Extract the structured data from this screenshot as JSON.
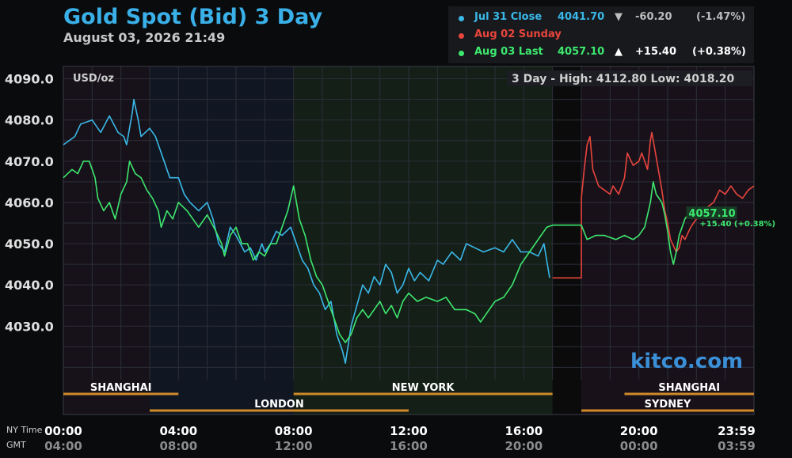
{
  "header": {
    "title": "Gold Spot (Bid) 3 Day",
    "timestamp": "August 03, 2026 21:49"
  },
  "legend": [
    {
      "label": "Jul 31 Close",
      "value": "4041.70",
      "arrow": "▼",
      "change": "-60.20",
      "pct": "(-1.47%)",
      "color": "#3ab8e8",
      "value_color": "#3ab8e8",
      "change_color": "#bdbdbd"
    },
    {
      "label": "Aug 02 Sunday",
      "value": "",
      "arrow": "",
      "change": "",
      "pct": "",
      "color": "#e8453c",
      "value_color": "#e8453c",
      "change_color": "#ffffff"
    },
    {
      "label": "Aug 03 Last",
      "value": "4057.10",
      "arrow": "▲",
      "change": "+15.40",
      "pct": "(+0.38%)",
      "color": "#3ee86f",
      "value_color": "#3ee86f",
      "change_color": "#ffffff"
    }
  ],
  "unit_label": "USD/oz",
  "range_info": "3 Day - High: 4112.80  Low: 4018.20",
  "last_label": {
    "price": "4057.10",
    "change": "+15.40 (+0.38%)"
  },
  "watermark": "kitco.com",
  "tz_labels": {
    "ny": "NY Time",
    "gmt": "GMT"
  },
  "chart_data": {
    "type": "line",
    "title": "Gold Spot (Bid) 3 Day",
    "ylabel": "USD/oz",
    "ylim": [
      4017,
      4093
    ],
    "y_ticks": [
      4090.0,
      4080.0,
      4070.0,
      4060.0,
      4050.0,
      4040.0,
      4030.0
    ],
    "y_tick_labels": [
      "4090.0",
      "4080.0",
      "4070.0",
      "4060.0",
      "4050.0",
      "4040.0",
      "4030.0"
    ],
    "xlim": [
      0,
      24
    ],
    "x_ticks": [
      0,
      4,
      8,
      12,
      16,
      20,
      24
    ],
    "x_tick_labels_ny": [
      "00:00",
      "04:00",
      "08:00",
      "12:00",
      "16:00",
      "20:00",
      "23:59"
    ],
    "x_tick_labels_gmt": [
      "04:00",
      "08:00",
      "12:00",
      "16:00",
      "20:00",
      "00:00",
      "03:59"
    ],
    "grid": true,
    "sessions": [
      {
        "name": "SHANGHAI",
        "start": 0,
        "end": 4,
        "row": 1,
        "color": "#d08a2a"
      },
      {
        "name": "NEW YORK",
        "start": 8,
        "end": 17,
        "row": 1,
        "color": "#d08a2a"
      },
      {
        "name": "SHANGHAI",
        "start": 19.5,
        "end": 24,
        "row": 1,
        "color": "#d08a2a"
      },
      {
        "name": "LONDON",
        "start": 3,
        "end": 12,
        "row": 2,
        "color": "#d08a2a"
      },
      {
        "name": "SYDNEY",
        "start": 18,
        "end": 24,
        "row": 2,
        "color": "#d08a2a"
      }
    ],
    "background_bands": [
      {
        "start": 0,
        "end": 3,
        "color": "#171119"
      },
      {
        "start": 3,
        "end": 8,
        "color": "#111722"
      },
      {
        "start": 8,
        "end": 17,
        "color": "#141f17"
      },
      {
        "start": 17,
        "end": 18,
        "color": "#0b0b0b"
      },
      {
        "start": 18,
        "end": 24,
        "color": "#18111a"
      }
    ],
    "series": [
      {
        "name": "Jul 31 Close",
        "color": "#3ab8e8",
        "points": [
          [
            0,
            4074
          ],
          [
            0.4,
            4076
          ],
          [
            0.6,
            4079
          ],
          [
            1,
            4080
          ],
          [
            1.3,
            4077
          ],
          [
            1.6,
            4081
          ],
          [
            1.9,
            4077
          ],
          [
            2.1,
            4076
          ],
          [
            2.2,
            4074
          ],
          [
            2.4,
            4082
          ],
          [
            2.45,
            4085
          ],
          [
            2.6,
            4080
          ],
          [
            2.7,
            4076
          ],
          [
            3,
            4078
          ],
          [
            3.2,
            4076
          ],
          [
            3.5,
            4070
          ],
          [
            3.7,
            4066
          ],
          [
            4,
            4066
          ],
          [
            4.2,
            4062
          ],
          [
            4.4,
            4060
          ],
          [
            4.7,
            4058
          ],
          [
            5,
            4060
          ],
          [
            5.2,
            4056
          ],
          [
            5.4,
            4050
          ],
          [
            5.6,
            4048
          ],
          [
            5.8,
            4054
          ],
          [
            6,
            4052
          ],
          [
            6.3,
            4048
          ],
          [
            6.5,
            4049
          ],
          [
            6.7,
            4046
          ],
          [
            6.9,
            4050
          ],
          [
            7,
            4048
          ],
          [
            7.2,
            4050
          ],
          [
            7.4,
            4053
          ],
          [
            7.6,
            4052
          ],
          [
            7.9,
            4054
          ],
          [
            8.1,
            4050
          ],
          [
            8.3,
            4046
          ],
          [
            8.5,
            4044
          ],
          [
            8.7,
            4040
          ],
          [
            8.9,
            4038
          ],
          [
            9.1,
            4034
          ],
          [
            9.3,
            4036
          ],
          [
            9.5,
            4028
          ],
          [
            9.7,
            4024
          ],
          [
            9.8,
            4021
          ],
          [
            10,
            4030
          ],
          [
            10.2,
            4035
          ],
          [
            10.4,
            4040
          ],
          [
            10.6,
            4038
          ],
          [
            10.8,
            4042
          ],
          [
            11,
            4040
          ],
          [
            11.2,
            4045
          ],
          [
            11.4,
            4043
          ],
          [
            11.6,
            4038
          ],
          [
            11.8,
            4040
          ],
          [
            12,
            4044
          ],
          [
            12.2,
            4041
          ],
          [
            12.4,
            4043
          ],
          [
            12.7,
            4041
          ],
          [
            13,
            4046
          ],
          [
            13.2,
            4045
          ],
          [
            13.5,
            4048
          ],
          [
            13.8,
            4046
          ],
          [
            14,
            4050
          ],
          [
            14.3,
            4049
          ],
          [
            14.6,
            4048
          ],
          [
            15,
            4049
          ],
          [
            15.3,
            4048
          ],
          [
            15.6,
            4051
          ],
          [
            15.9,
            4048
          ],
          [
            16.2,
            4048
          ],
          [
            16.5,
            4047
          ],
          [
            16.7,
            4050
          ],
          [
            16.9,
            4041.7
          ]
        ]
      },
      {
        "name": "Aug 02 Sunday",
        "color": "#e8453c",
        "points": [
          [
            17,
            4041.7
          ],
          [
            18,
            4041.7
          ],
          [
            18,
            4061
          ],
          [
            18.1,
            4068
          ],
          [
            18.2,
            4074
          ],
          [
            18.3,
            4076
          ],
          [
            18.4,
            4068
          ],
          [
            18.5,
            4066
          ],
          [
            18.6,
            4064
          ],
          [
            18.8,
            4063
          ],
          [
            19,
            4062
          ],
          [
            19.1,
            4064
          ],
          [
            19.3,
            4062
          ],
          [
            19.5,
            4066
          ],
          [
            19.6,
            4072
          ],
          [
            19.8,
            4069
          ],
          [
            20,
            4070
          ],
          [
            20.1,
            4072
          ],
          [
            20.3,
            4068
          ],
          [
            20.4,
            4075
          ],
          [
            20.45,
            4077
          ],
          [
            20.6,
            4071
          ],
          [
            20.7,
            4067
          ],
          [
            20.8,
            4063
          ],
          [
            20.9,
            4058
          ],
          [
            21,
            4055
          ],
          [
            21.1,
            4051
          ],
          [
            21.3,
            4048
          ],
          [
            21.4,
            4049
          ],
          [
            21.5,
            4052
          ],
          [
            21.6,
            4051
          ],
          [
            21.8,
            4054
          ],
          [
            22,
            4056
          ],
          [
            22.2,
            4057
          ],
          [
            22.4,
            4059
          ],
          [
            22.6,
            4060
          ],
          [
            22.8,
            4063
          ],
          [
            23,
            4062
          ],
          [
            23.2,
            4064
          ],
          [
            23.4,
            4062
          ],
          [
            23.6,
            4061
          ],
          [
            23.8,
            4063
          ],
          [
            24,
            4064
          ]
        ]
      },
      {
        "name": "Aug 03 Last",
        "color": "#3ee86f",
        "points": [
          [
            0,
            4066
          ],
          [
            0.3,
            4068
          ],
          [
            0.5,
            4067
          ],
          [
            0.7,
            4070
          ],
          [
            0.9,
            4070
          ],
          [
            1.1,
            4066
          ],
          [
            1.2,
            4061
          ],
          [
            1.4,
            4058
          ],
          [
            1.6,
            4060
          ],
          [
            1.8,
            4056
          ],
          [
            2,
            4062
          ],
          [
            2.2,
            4065
          ],
          [
            2.3,
            4070
          ],
          [
            2.5,
            4067
          ],
          [
            2.7,
            4066
          ],
          [
            2.9,
            4063
          ],
          [
            3.1,
            4061
          ],
          [
            3.3,
            4058
          ],
          [
            3.4,
            4054
          ],
          [
            3.6,
            4058
          ],
          [
            3.8,
            4056
          ],
          [
            4,
            4060
          ],
          [
            4.3,
            4058
          ],
          [
            4.5,
            4056
          ],
          [
            4.7,
            4054
          ],
          [
            5,
            4057
          ],
          [
            5.3,
            4053
          ],
          [
            5.5,
            4050
          ],
          [
            5.6,
            4047
          ],
          [
            5.8,
            4052
          ],
          [
            6,
            4054
          ],
          [
            6.2,
            4050
          ],
          [
            6.4,
            4050
          ],
          [
            6.6,
            4046
          ],
          [
            6.8,
            4048
          ],
          [
            7,
            4047
          ],
          [
            7.2,
            4050
          ],
          [
            7.4,
            4050
          ],
          [
            7.6,
            4054
          ],
          [
            7.8,
            4058
          ],
          [
            8,
            4064
          ],
          [
            8.2,
            4056
          ],
          [
            8.4,
            4052
          ],
          [
            8.6,
            4046
          ],
          [
            8.8,
            4042
          ],
          [
            9,
            4040
          ],
          [
            9.2,
            4036
          ],
          [
            9.4,
            4032
          ],
          [
            9.6,
            4028
          ],
          [
            9.8,
            4026
          ],
          [
            10,
            4028
          ],
          [
            10.2,
            4032
          ],
          [
            10.4,
            4034
          ],
          [
            10.6,
            4032
          ],
          [
            10.8,
            4034
          ],
          [
            11,
            4036
          ],
          [
            11.2,
            4033
          ],
          [
            11.4,
            4035
          ],
          [
            11.6,
            4032
          ],
          [
            11.8,
            4036
          ],
          [
            12,
            4038
          ],
          [
            12.3,
            4036
          ],
          [
            12.6,
            4037
          ],
          [
            13,
            4036
          ],
          [
            13.3,
            4037
          ],
          [
            13.6,
            4034
          ],
          [
            14,
            4034
          ],
          [
            14.3,
            4033
          ],
          [
            14.5,
            4031
          ],
          [
            14.8,
            4034
          ],
          [
            15,
            4036
          ],
          [
            15.3,
            4037
          ],
          [
            15.6,
            4040
          ],
          [
            15.9,
            4045
          ],
          [
            16.2,
            4048
          ],
          [
            16.5,
            4051
          ],
          [
            16.8,
            4054
          ],
          [
            17,
            4054.5
          ],
          [
            18,
            4054.5
          ],
          [
            18.2,
            4051
          ],
          [
            18.5,
            4052
          ],
          [
            18.8,
            4052
          ],
          [
            19.2,
            4051
          ],
          [
            19.5,
            4052
          ],
          [
            19.8,
            4051
          ],
          [
            20,
            4052
          ],
          [
            20.2,
            4054
          ],
          [
            20.3,
            4057
          ],
          [
            20.4,
            4060
          ],
          [
            20.5,
            4065
          ],
          [
            20.6,
            4062
          ],
          [
            20.8,
            4060
          ],
          [
            20.9,
            4057
          ],
          [
            21,
            4053
          ],
          [
            21.1,
            4048
          ],
          [
            21.2,
            4045
          ],
          [
            21.3,
            4048
          ],
          [
            21.4,
            4052
          ],
          [
            21.5,
            4054
          ],
          [
            21.6,
            4056
          ],
          [
            21.7,
            4057.1
          ]
        ]
      }
    ]
  }
}
